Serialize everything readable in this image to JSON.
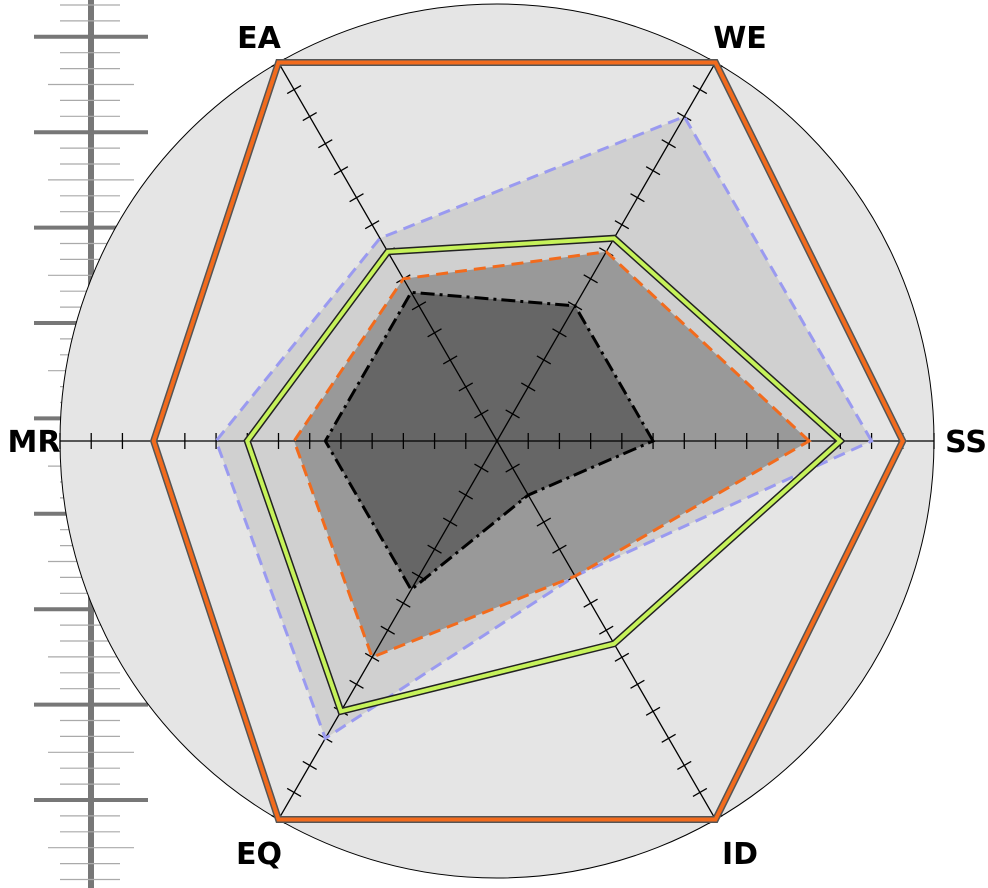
{
  "chart_data": {
    "type": "radar",
    "axes": [
      "SS",
      "WE",
      "EA",
      "MR",
      "EQ",
      "ID"
    ],
    "r_max": 14,
    "series": [
      {
        "values": [
          13,
          14,
          14,
          11,
          14,
          14
        ],
        "fill": "none",
        "stroke": "#F26B1D",
        "stroke_style": "solid",
        "outline": "#555555"
      },
      {
        "values": [
          12,
          12,
          7.5,
          9,
          11,
          5
        ],
        "fill": "#D0D0D0",
        "stroke": "#9A9AF0",
        "stroke_style": "dashed"
      },
      {
        "values": [
          11,
          7.5,
          7,
          8,
          10,
          7.5
        ],
        "fill": "none",
        "stroke": "#C6F25A",
        "stroke_style": "solid",
        "outline": "#222222"
      },
      {
        "values": [
          10,
          7,
          6,
          6.5,
          8,
          5
        ],
        "fill": "#999999",
        "stroke": "#F26B1D",
        "stroke_style": "dashed"
      },
      {
        "values": [
          5,
          5,
          5.5,
          5.5,
          5.5,
          2
        ],
        "fill": "#666666",
        "stroke": "#000000",
        "stroke_style": "dashdot"
      }
    ],
    "grid": true,
    "legend": "none",
    "background": "#E5E5E5"
  }
}
